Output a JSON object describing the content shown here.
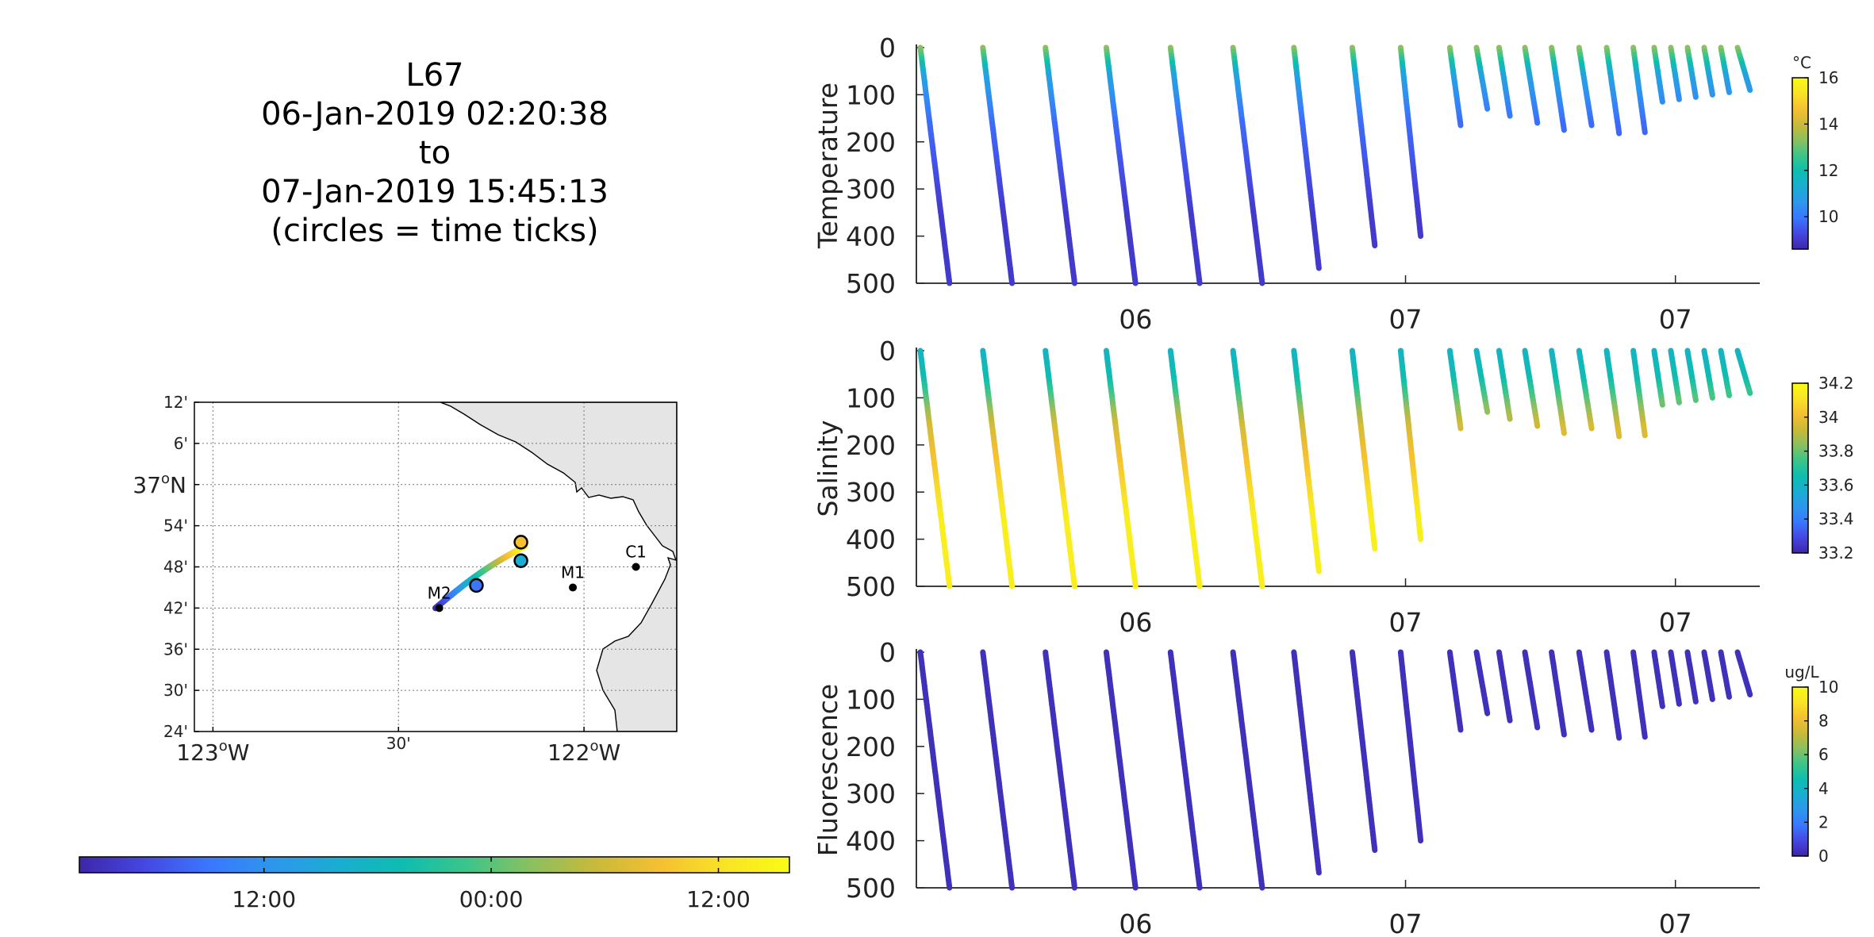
{
  "title": {
    "line1": "L67",
    "line2": "06-Jan-2019 02:20:38",
    "line3": "to",
    "line4": "07-Jan-2019 15:45:13",
    "line5": "(circles = time ticks)"
  },
  "colormap": [
    "#3e26a8",
    "#4547e1",
    "#3a77fe",
    "#2d97ec",
    "#1aadd2",
    "#0ebdb0",
    "#3bc58a",
    "#8ac060",
    "#c9b93a",
    "#f5c032",
    "#f9e326",
    "#f9fb14"
  ],
  "chart_data": [
    {
      "type": "map",
      "lon_range": [
        -123.05,
        -121.75
      ],
      "lat_range": [
        36.4,
        37.2
      ],
      "lon_ticks": [
        {
          "value": -123.0,
          "label": "123",
          "style": "deg",
          "suffix": "W"
        },
        {
          "value": -122.5,
          "label": "30'",
          "style": "min"
        },
        {
          "value": -122.0,
          "label": "122",
          "style": "deg",
          "suffix": "W"
        }
      ],
      "lat_ticks": [
        {
          "value": 37.2,
          "label": "12'"
        },
        {
          "value": 37.1,
          "label": "6'"
        },
        {
          "value": 37.0,
          "label": "37",
          "style": "deg",
          "suffix": "N"
        },
        {
          "value": 36.9,
          "label": "54'"
        },
        {
          "value": 36.8,
          "label": "48'"
        },
        {
          "value": 36.7,
          "label": "42'"
        },
        {
          "value": 36.6,
          "label": "36'"
        },
        {
          "value": 36.5,
          "label": "30'"
        },
        {
          "value": 36.4,
          "label": "24'"
        }
      ],
      "grid": true,
      "land_color": "#e5e5e5",
      "stations": [
        {
          "name": "M2",
          "lon": -122.39,
          "lat": 36.7
        },
        {
          "name": "M1",
          "lon": -122.03,
          "lat": 36.75
        },
        {
          "name": "C1",
          "lon": -121.86,
          "lat": 36.8
        }
      ],
      "track": {
        "start": [
          -122.4,
          36.7
        ],
        "end": [
          -122.16,
          36.85
        ]
      },
      "time_ticks": [
        {
          "lon": -122.29,
          "lat": 36.755,
          "color": "#3a77fe"
        },
        {
          "lon": -122.17,
          "lat": 36.815,
          "color": "#1aadd2"
        },
        {
          "lon": -122.17,
          "lat": 36.86,
          "color": "#f5c032"
        }
      ]
    },
    {
      "type": "colorbar",
      "orientation": "horizontal",
      "ticks": [
        {
          "pos": 0.26,
          "label": "12:00"
        },
        {
          "pos": 0.58,
          "label": "00:00"
        },
        {
          "pos": 0.9,
          "label": "12:00"
        }
      ]
    },
    {
      "type": "scatter",
      "variable": "temperature",
      "ylabel": "Temperature",
      "ylim": [
        0,
        500
      ],
      "yticks": [
        0,
        100,
        200,
        300,
        400,
        500
      ],
      "x_ticks": [
        {
          "pos": 0.26,
          "label": "06"
        },
        {
          "pos": 0.58,
          "label": "07"
        },
        {
          "pos": 0.9,
          "label": "07"
        }
      ],
      "colorbar": {
        "unit": "°C",
        "min": 8.6,
        "max": 16.0,
        "ticks": [
          10,
          12,
          14,
          16
        ]
      },
      "profile_value": {
        "near_surface": 13.5,
        "upper": 11.0,
        "deep": 9.0
      }
    },
    {
      "type": "scatter",
      "variable": "salinity",
      "ylabel": "Salinity",
      "ylim": [
        0,
        500
      ],
      "yticks": [
        0,
        100,
        200,
        300,
        400,
        500
      ],
      "x_ticks": [
        {
          "pos": 0.26,
          "label": "06"
        },
        {
          "pos": 0.58,
          "label": "07"
        },
        {
          "pos": 0.9,
          "label": "07"
        }
      ],
      "colorbar": {
        "unit": "",
        "min": 33.2,
        "max": 34.2,
        "ticks": [
          "33.2",
          "33.4",
          "33.6",
          "33.8",
          "34",
          "34.2"
        ]
      },
      "profile_value": {
        "near_surface": 33.6,
        "upper": 33.65,
        "deep": 34.15
      }
    },
    {
      "type": "scatter",
      "variable": "fluorescence",
      "ylabel": "Fluorescence",
      "ylim": [
        0,
        500
      ],
      "yticks": [
        0,
        100,
        200,
        300,
        400,
        500
      ],
      "x_ticks": [
        {
          "pos": 0.26,
          "label": "06"
        },
        {
          "pos": 0.58,
          "label": "07"
        },
        {
          "pos": 0.9,
          "label": "07"
        }
      ],
      "colorbar": {
        "unit": "ug/L",
        "min": 0,
        "max": 10,
        "ticks": [
          0,
          2,
          4,
          6,
          8,
          10
        ]
      },
      "profile_value": {
        "near_surface": 0.3,
        "upper": 0.3,
        "deep": 0.3
      }
    }
  ],
  "profiles": [
    {
      "x0": 0.0,
      "x1": 0.035,
      "dmax": 500
    },
    {
      "x0": 0.075,
      "x1": 0.11,
      "dmax": 500
    },
    {
      "x0": 0.15,
      "x1": 0.185,
      "dmax": 500
    },
    {
      "x0": 0.223,
      "x1": 0.258,
      "dmax": 500
    },
    {
      "x0": 0.3,
      "x1": 0.335,
      "dmax": 500
    },
    {
      "x0": 0.375,
      "x1": 0.41,
      "dmax": 500
    },
    {
      "x0": 0.448,
      "x1": 0.478,
      "dmax": 468
    },
    {
      "x0": 0.518,
      "x1": 0.545,
      "dmax": 420
    },
    {
      "x0": 0.576,
      "x1": 0.6,
      "dmax": 400
    },
    {
      "x0": 0.635,
      "x1": 0.648,
      "dmax": 165
    },
    {
      "x0": 0.667,
      "x1": 0.68,
      "dmax": 130
    },
    {
      "x0": 0.694,
      "x1": 0.707,
      "dmax": 145
    },
    {
      "x0": 0.725,
      "x1": 0.74,
      "dmax": 160
    },
    {
      "x0": 0.757,
      "x1": 0.772,
      "dmax": 175
    },
    {
      "x0": 0.79,
      "x1": 0.805,
      "dmax": 165
    },
    {
      "x0": 0.823,
      "x1": 0.838,
      "dmax": 182
    },
    {
      "x0": 0.855,
      "x1": 0.869,
      "dmax": 180
    },
    {
      "x0": 0.88,
      "x1": 0.89,
      "dmax": 115
    },
    {
      "x0": 0.9,
      "x1": 0.91,
      "dmax": 110
    },
    {
      "x0": 0.92,
      "x1": 0.93,
      "dmax": 105
    },
    {
      "x0": 0.94,
      "x1": 0.95,
      "dmax": 100
    },
    {
      "x0": 0.96,
      "x1": 0.97,
      "dmax": 95
    },
    {
      "x0": 0.98,
      "x1": 0.995,
      "dmax": 90
    }
  ]
}
